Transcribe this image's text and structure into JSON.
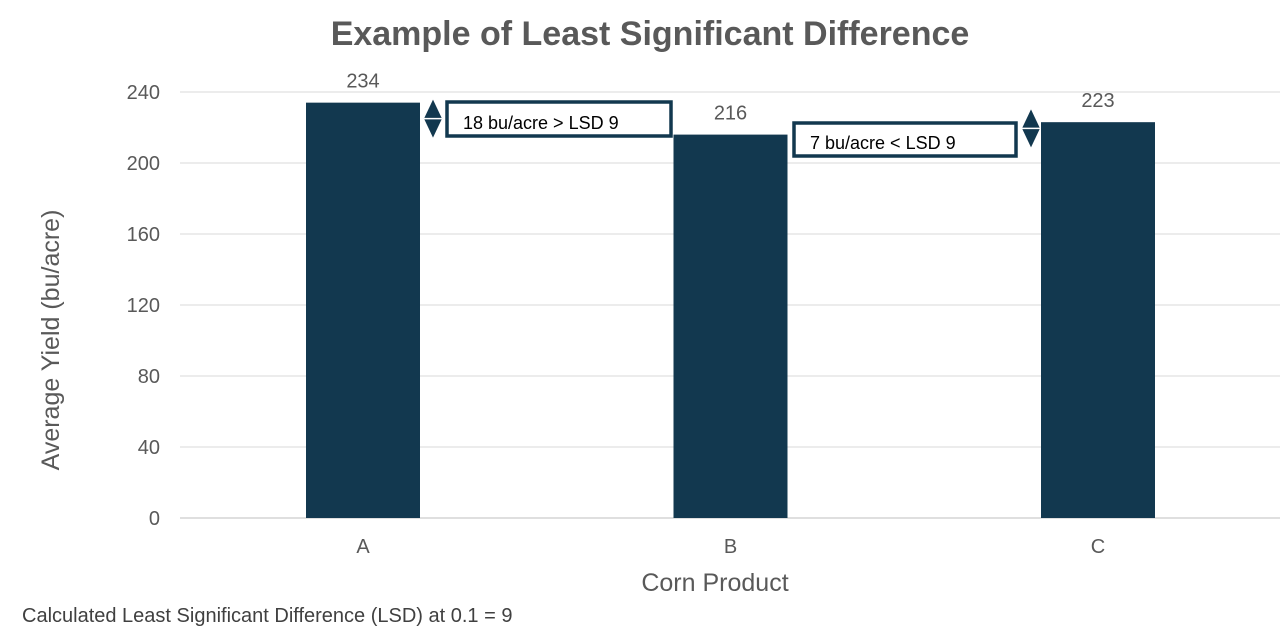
{
  "chart_data": {
    "type": "bar",
    "title": "Example of Least Significant Difference",
    "xlabel": "Corn Product",
    "ylabel": "Average Yield (bu/acre)",
    "categories": [
      "A",
      "B",
      "C"
    ],
    "values": [
      234,
      216,
      223
    ],
    "ylim": [
      0,
      240
    ],
    "yticks": [
      0,
      40,
      80,
      120,
      160,
      200,
      240
    ],
    "grid": true,
    "bar_color": "#12384f",
    "annotations": [
      {
        "text": "18 bu/acre > LSD 9",
        "from": "A",
        "to": "B"
      },
      {
        "text": "7 bu/acre < LSD 9",
        "from": "B",
        "to": "C"
      }
    ],
    "footnote": "Calculated Least Significant Difference (LSD) at 0.1 = 9"
  }
}
